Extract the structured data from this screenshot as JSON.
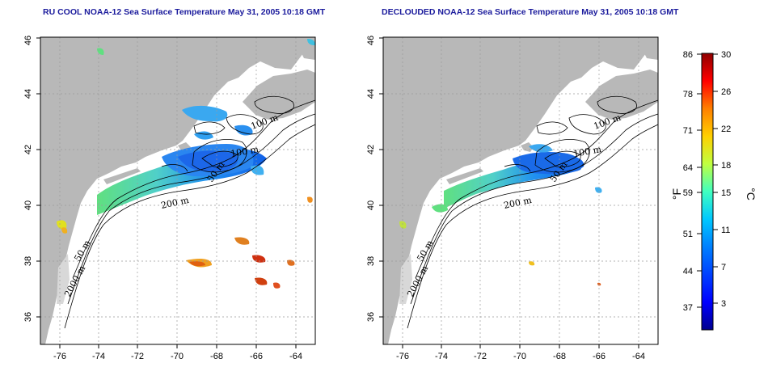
{
  "titles": {
    "left": "RU COOL NOAA-12 Sea Surface Temperature May 31, 2005 10:18 GMT",
    "right": "DECLOUDED NOAA-12 Sea Surface Temperature May 31, 2005 10:18 GMT"
  },
  "axes": {
    "longitude_ticks": [
      "-76",
      "-74",
      "-72",
      "-70",
      "-68",
      "-66",
      "-64"
    ],
    "latitude_ticks": [
      "36",
      "38",
      "40",
      "42",
      "44",
      "46"
    ]
  },
  "contour_labels": {
    "left": [
      "100 m",
      "100 m",
      "50 m",
      "200 m",
      "50 m",
      "2000 m"
    ],
    "right": [
      "100 m",
      "100 m",
      "50 m",
      "200 m",
      "50 m",
      "2000 m"
    ]
  },
  "colorbar": {
    "fahrenheit_unit": "°F",
    "celsius_unit": "°C",
    "fahrenheit_ticks": [
      "86",
      "78",
      "71",
      "64",
      "59",
      "51",
      "44",
      "37"
    ],
    "celsius_ticks": [
      "30",
      "26",
      "22",
      "18",
      "15",
      "11",
      "7",
      "3"
    ],
    "range_celsius": [
      0,
      30
    ],
    "colors": [
      "#00008f",
      "#0000ff",
      "#0080ff",
      "#00c8ff",
      "#40ffc0",
      "#c0ff40",
      "#ffd000",
      "#ff8000",
      "#ff0000",
      "#8f0000"
    ]
  },
  "colors": {
    "land": "#b8b8b8",
    "title": "#1a1a9c",
    "contour": "#000000",
    "grid": "#9a9a9a"
  }
}
